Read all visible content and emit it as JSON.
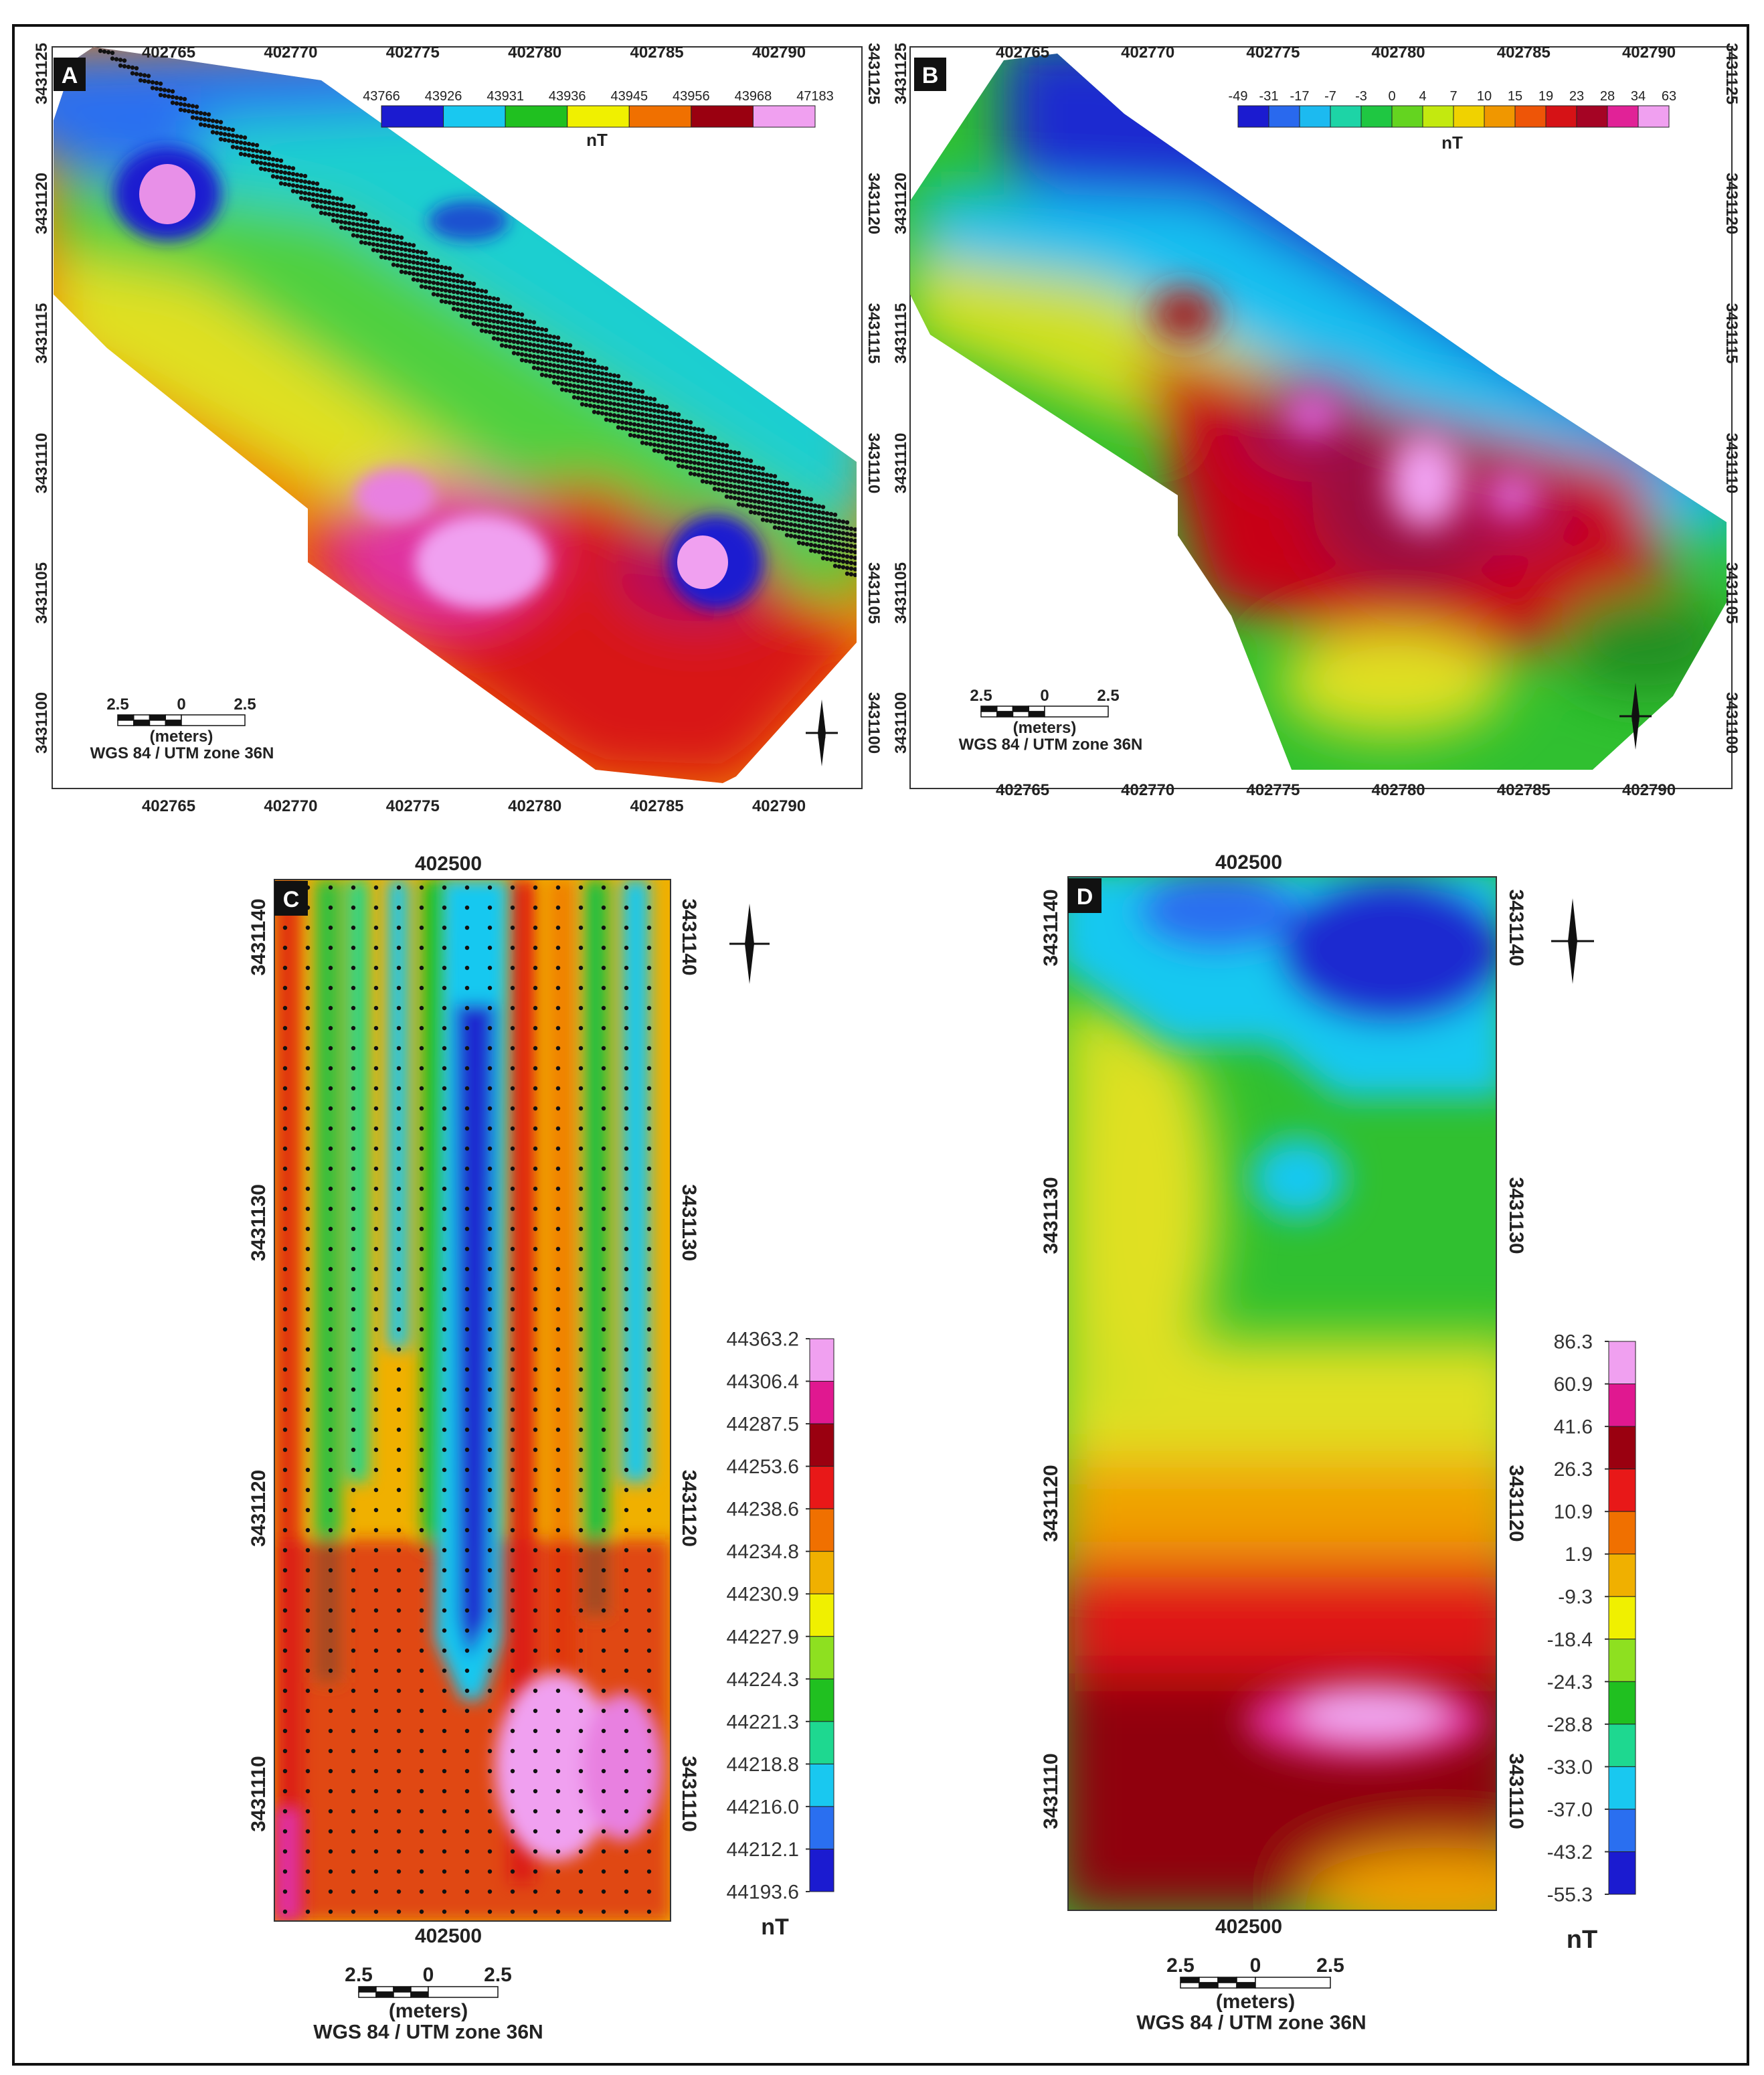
{
  "colors": {
    "ramp": [
      "#1b1bd0",
      "#2a6ff0",
      "#19c8f0",
      "#1ed890",
      "#20c020",
      "#8ee020",
      "#f0f000",
      "#f0b000",
      "#f07000",
      "#e81818",
      "#9a0010",
      "#e01890",
      "#f0a0f0"
    ]
  },
  "panels": [
    {
      "id": "A",
      "x_ticks": [
        "402765",
        "402770",
        "402775",
        "402780",
        "402785",
        "402790"
      ],
      "y_ticks": [
        "3431125",
        "3431120",
        "3431115",
        "3431110",
        "3431105",
        "3431100"
      ],
      "legend_values": [
        "43766",
        "43926",
        "43931",
        "43936",
        "43945",
        "43956",
        "43968",
        "47183"
      ],
      "legend_unit": "nT",
      "scale": {
        "left": "2.5",
        "mid": "0",
        "right": "2.5",
        "unit": "(meters)",
        "crs": "WGS 84 / UTM zone 36N"
      }
    },
    {
      "id": "B",
      "x_ticks": [
        "402765",
        "402770",
        "402775",
        "402780",
        "402785",
        "402790"
      ],
      "y_ticks": [
        "3431125",
        "3431120",
        "3431115",
        "3431110",
        "3431105",
        "3431100"
      ],
      "legend_values": [
        "-49",
        "-31",
        "-17",
        "-7",
        "-3",
        "0",
        "4",
        "7",
        "10",
        "15",
        "19",
        "23",
        "28",
        "34",
        "63"
      ],
      "legend_unit": "nT",
      "scale": {
        "left": "2.5",
        "mid": "0",
        "right": "2.5",
        "unit": "(meters)",
        "crs": "WGS 84 / UTM zone 36N"
      }
    },
    {
      "id": "C",
      "x_tick": "402500",
      "y_ticks": [
        "3431140",
        "3431130",
        "3431120",
        "3431110"
      ],
      "legend_values": [
        "44363.2",
        "44306.4",
        "44287.5",
        "44253.6",
        "44238.6",
        "44234.8",
        "44230.9",
        "44227.9",
        "44224.3",
        "44221.3",
        "44218.8",
        "44216.0",
        "44212.1",
        "44193.6"
      ],
      "legend_unit": "nT",
      "scale": {
        "left": "2.5",
        "mid": "0",
        "right": "2.5",
        "unit": "(meters)",
        "crs": "WGS 84 / UTM zone 36N"
      }
    },
    {
      "id": "D",
      "x_tick": "402500",
      "y_ticks": [
        "3431140",
        "3431130",
        "3431120",
        "3431110"
      ],
      "legend_values": [
        "86.3",
        "60.9",
        "41.6",
        "26.3",
        "10.9",
        "1.9",
        "-9.3",
        "-18.4",
        "-24.3",
        "-28.8",
        "-33.0",
        "-37.0",
        "-43.2",
        "-55.3"
      ],
      "legend_unit": "nT",
      "scale": {
        "left": "2.5",
        "mid": "0",
        "right": "2.5",
        "unit": "(meters)",
        "crs": "WGS 84 / UTM zone 36N"
      }
    }
  ]
}
